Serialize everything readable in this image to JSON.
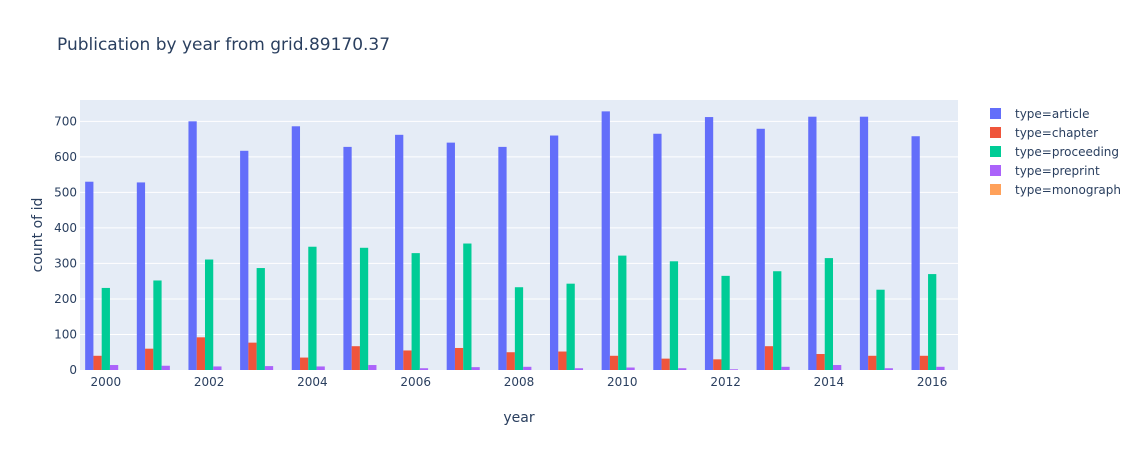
{
  "chart_data": {
    "type": "bar",
    "title": "Publication by year from grid.89170.37",
    "xlabel": "year",
    "ylabel": "count of id",
    "categories": [
      "2000",
      "2001",
      "2002",
      "2003",
      "2004",
      "2005",
      "2006",
      "2007",
      "2008",
      "2009",
      "2010",
      "2011",
      "2012",
      "2013",
      "2014",
      "2015",
      "2016"
    ],
    "x_tick_labels": [
      "2000",
      "2002",
      "2004",
      "2006",
      "2008",
      "2010",
      "2012",
      "2014",
      "2016"
    ],
    "y_ticks": [
      "0",
      "100",
      "200",
      "300",
      "400",
      "500",
      "600",
      "700"
    ],
    "ylim": [
      0,
      760
    ],
    "grid": true,
    "legend_position": "top-right",
    "background_color": "#e5ecf6",
    "series": [
      {
        "name": "type=article",
        "color": "#636efa",
        "values": [
          530,
          528,
          700,
          617,
          686,
          628,
          662,
          640,
          628,
          660,
          728,
          665,
          712,
          679,
          713,
          713,
          658
        ]
      },
      {
        "name": "type=chapter",
        "color": "#EF553B",
        "values": [
          40,
          60,
          92,
          77,
          35,
          67,
          55,
          62,
          50,
          52,
          40,
          32,
          30,
          67,
          45,
          40,
          40
        ]
      },
      {
        "name": "type=proceeding",
        "color": "#00cc96",
        "values": [
          231,
          252,
          311,
          287,
          347,
          344,
          329,
          356,
          233,
          243,
          322,
          306,
          265,
          278,
          315,
          226,
          270
        ]
      },
      {
        "name": "type=preprint",
        "color": "#ab63fa",
        "values": [
          14,
          12,
          10,
          11,
          10,
          14,
          5,
          8,
          9,
          5,
          7,
          5,
          2,
          9,
          14,
          5,
          9
        ]
      },
      {
        "name": "type=monograph",
        "color": "#FFA15A",
        "values": [
          0,
          0,
          0,
          0,
          0,
          0,
          0,
          0,
          0,
          0,
          0,
          0,
          0,
          0,
          0,
          0,
          0
        ]
      }
    ]
  }
}
